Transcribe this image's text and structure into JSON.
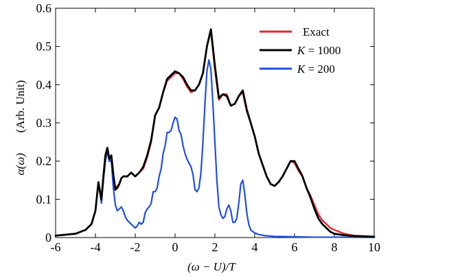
{
  "chart_data": {
    "type": "line",
    "title": "",
    "xlabel": "(ω − U)/T",
    "ylabel_symbol": "α(ω)",
    "ylabel_unit": "(Arb. Unit)",
    "xlim": [
      -6,
      10
    ],
    "ylim": [
      0,
      0.6
    ],
    "x_ticks": [
      -6,
      -4,
      -2,
      0,
      2,
      4,
      6,
      8,
      10
    ],
    "x_tick_labels": [
      "-6",
      "-4",
      "-2",
      "0",
      "2",
      "4",
      "6",
      "8",
      "10"
    ],
    "y_ticks": [
      0,
      0.1,
      0.2,
      0.3,
      0.4,
      0.5,
      0.6
    ],
    "y_tick_labels": [
      "0",
      "0.1",
      "0.2",
      "0.3",
      "0.4",
      "0.5",
      "0.6"
    ],
    "legend_position": "top-right",
    "series": [
      {
        "name": "Exact",
        "legend_var": "",
        "legend_value": "Exact",
        "color": "#e8262a",
        "x": [
          -6,
          -5,
          -4.5,
          -4.2,
          -4.0,
          -3.85,
          -3.7,
          -3.6,
          -3.5,
          -3.4,
          -3.3,
          -3.2,
          -3.1,
          -3.0,
          -2.9,
          -2.8,
          -2.7,
          -2.6,
          -2.5,
          -2.4,
          -2.2,
          -2.0,
          -1.8,
          -1.6,
          -1.4,
          -1.2,
          -1.0,
          -0.8,
          -0.6,
          -0.4,
          -0.2,
          0,
          0.2,
          0.4,
          0.6,
          0.8,
          1.0,
          1.2,
          1.4,
          1.6,
          1.8,
          2.0,
          2.2,
          2.4,
          2.6,
          2.8,
          3.0,
          3.2,
          3.4,
          3.6,
          3.8,
          4.0,
          4.2,
          4.4,
          4.6,
          4.8,
          5.0,
          5.2,
          5.4,
          5.6,
          5.8,
          6.0,
          6.2,
          6.4,
          6.6,
          6.8,
          7.0,
          7.2,
          7.4,
          7.6,
          7.8,
          8.0,
          8.5,
          9.0,
          9.5,
          10
        ],
        "y": [
          0.005,
          0.01,
          0.02,
          0.035,
          0.07,
          0.14,
          0.1,
          0.16,
          0.21,
          0.23,
          0.2,
          0.2,
          0.16,
          0.13,
          0.135,
          0.14,
          0.155,
          0.16,
          0.16,
          0.16,
          0.17,
          0.16,
          0.17,
          0.18,
          0.21,
          0.25,
          0.32,
          0.34,
          0.38,
          0.41,
          0.42,
          0.43,
          0.43,
          0.415,
          0.395,
          0.38,
          0.385,
          0.4,
          0.43,
          0.5,
          0.54,
          0.44,
          0.36,
          0.375,
          0.375,
          0.345,
          0.35,
          0.37,
          0.38,
          0.33,
          0.3,
          0.265,
          0.22,
          0.19,
          0.16,
          0.14,
          0.135,
          0.145,
          0.16,
          0.18,
          0.2,
          0.195,
          0.175,
          0.16,
          0.13,
          0.11,
          0.085,
          0.06,
          0.045,
          0.035,
          0.025,
          0.02,
          0.01,
          0.005,
          0.004,
          0.003
        ]
      },
      {
        "name": "K = 1000",
        "legend_var": "K",
        "legend_value": "= 1000",
        "color": "#000000",
        "x": [
          -6,
          -5,
          -4.5,
          -4.2,
          -4.0,
          -3.85,
          -3.7,
          -3.6,
          -3.5,
          -3.4,
          -3.3,
          -3.2,
          -3.1,
          -3.0,
          -2.9,
          -2.8,
          -2.7,
          -2.6,
          -2.5,
          -2.4,
          -2.2,
          -2.0,
          -1.8,
          -1.6,
          -1.4,
          -1.2,
          -1.0,
          -0.8,
          -0.6,
          -0.4,
          -0.2,
          0,
          0.2,
          0.4,
          0.6,
          0.8,
          1.0,
          1.2,
          1.4,
          1.6,
          1.8,
          2.0,
          2.2,
          2.4,
          2.6,
          2.8,
          3.0,
          3.2,
          3.4,
          3.6,
          3.8,
          4.0,
          4.2,
          4.4,
          4.6,
          4.8,
          5.0,
          5.2,
          5.4,
          5.6,
          5.8,
          6.0,
          6.2,
          6.4,
          6.6,
          6.8,
          7.0,
          7.2,
          7.4,
          7.6,
          7.8,
          8.0,
          8.5,
          9.0,
          9.5,
          10
        ],
        "y": [
          0.005,
          0.01,
          0.02,
          0.035,
          0.07,
          0.145,
          0.1,
          0.16,
          0.215,
          0.235,
          0.205,
          0.215,
          0.165,
          0.125,
          0.13,
          0.14,
          0.155,
          0.16,
          0.16,
          0.16,
          0.17,
          0.16,
          0.17,
          0.185,
          0.215,
          0.255,
          0.32,
          0.34,
          0.38,
          0.415,
          0.425,
          0.435,
          0.43,
          0.42,
          0.4,
          0.385,
          0.385,
          0.4,
          0.43,
          0.5,
          0.545,
          0.45,
          0.365,
          0.375,
          0.37,
          0.345,
          0.35,
          0.37,
          0.385,
          0.335,
          0.3,
          0.265,
          0.22,
          0.19,
          0.16,
          0.14,
          0.135,
          0.145,
          0.16,
          0.18,
          0.2,
          0.2,
          0.18,
          0.16,
          0.13,
          0.105,
          0.075,
          0.05,
          0.035,
          0.025,
          0.015,
          0.01,
          0.006,
          0.004,
          0.003,
          0.002
        ]
      },
      {
        "name": "K = 200",
        "legend_var": "K",
        "legend_value": "= 200",
        "color": "#1f4fe0",
        "x": [
          -6,
          -5,
          -4.5,
          -4.2,
          -4.0,
          -3.85,
          -3.7,
          -3.6,
          -3.5,
          -3.4,
          -3.3,
          -3.2,
          -3.1,
          -3.0,
          -2.9,
          -2.8,
          -2.7,
          -2.6,
          -2.5,
          -2.4,
          -2.3,
          -2.2,
          -2.1,
          -2.0,
          -1.9,
          -1.8,
          -1.7,
          -1.6,
          -1.5,
          -1.4,
          -1.3,
          -1.2,
          -1.1,
          -1.0,
          -0.9,
          -0.8,
          -0.7,
          -0.6,
          -0.5,
          -0.4,
          -0.3,
          -0.2,
          -0.1,
          0,
          0.1,
          0.2,
          0.3,
          0.4,
          0.5,
          0.6,
          0.7,
          0.8,
          0.9,
          1.0,
          1.1,
          1.2,
          1.3,
          1.4,
          1.5,
          1.6,
          1.7,
          1.8,
          1.9,
          2.0,
          2.1,
          2.2,
          2.3,
          2.4,
          2.5,
          2.6,
          2.7,
          2.8,
          2.9,
          3.0,
          3.1,
          3.2,
          3.3,
          3.4,
          3.5,
          3.6,
          3.7,
          3.8,
          4.0,
          4.2,
          4.5,
          5.0,
          6.0,
          7.0,
          8.0,
          10
        ],
        "y": [
          0.005,
          0.01,
          0.02,
          0.035,
          0.07,
          0.145,
          0.09,
          0.15,
          0.2,
          0.225,
          0.2,
          0.2,
          0.13,
          0.085,
          0.07,
          0.075,
          0.08,
          0.07,
          0.055,
          0.045,
          0.04,
          0.035,
          0.03,
          0.025,
          0.03,
          0.04,
          0.035,
          0.04,
          0.065,
          0.075,
          0.08,
          0.09,
          0.12,
          0.12,
          0.13,
          0.16,
          0.18,
          0.22,
          0.24,
          0.275,
          0.275,
          0.28,
          0.3,
          0.315,
          0.31,
          0.28,
          0.27,
          0.24,
          0.22,
          0.205,
          0.195,
          0.185,
          0.165,
          0.125,
          0.12,
          0.13,
          0.17,
          0.25,
          0.35,
          0.435,
          0.465,
          0.44,
          0.35,
          0.25,
          0.15,
          0.08,
          0.06,
          0.05,
          0.055,
          0.075,
          0.085,
          0.07,
          0.04,
          0.04,
          0.05,
          0.09,
          0.14,
          0.15,
          0.115,
          0.065,
          0.035,
          0.02,
          0.012,
          0.008,
          0.005,
          0.003,
          0.002,
          0.001,
          0.001,
          0.0005
        ]
      }
    ]
  }
}
